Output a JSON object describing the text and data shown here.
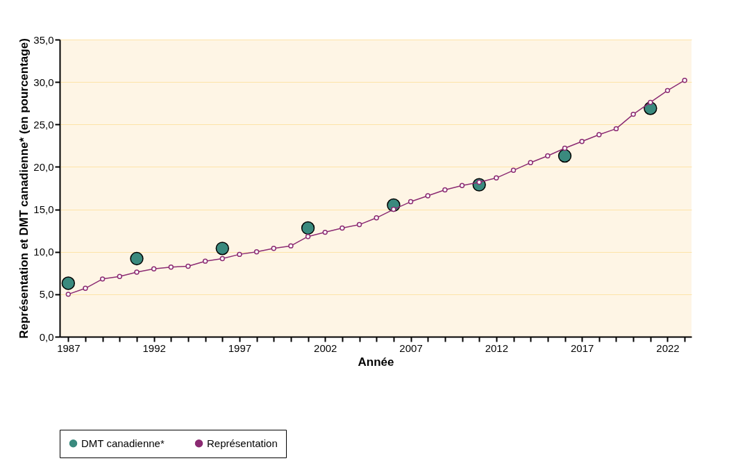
{
  "chart_data": {
    "type": "line",
    "xlabel": "Année",
    "ylabel": "Représentation et DMT canadienne* (en pourcentage)",
    "xlim": [
      1986.5,
      2023.4
    ],
    "ylim": [
      0,
      35
    ],
    "xticks": [
      1987,
      {
        "value": 1988,
        "label": null
      },
      {
        "value": 1989,
        "label": null
      },
      {
        "value": 1990,
        "label": null
      },
      {
        "value": 1991,
        "label": null
      },
      1992,
      {
        "value": 1993,
        "label": null
      },
      {
        "value": 1994,
        "label": null
      },
      {
        "value": 1995,
        "label": null
      },
      {
        "value": 1996,
        "label": null
      },
      1997,
      {
        "value": 1998,
        "label": null
      },
      {
        "value": 1999,
        "label": null
      },
      {
        "value": 2000,
        "label": null
      },
      {
        "value": 2001,
        "label": null
      },
      2002,
      {
        "value": 2003,
        "label": null
      },
      {
        "value": 2004,
        "label": null
      },
      {
        "value": 2005,
        "label": null
      },
      {
        "value": 2006,
        "label": null
      },
      2007,
      {
        "value": 2008,
        "label": null
      },
      {
        "value": 2009,
        "label": null
      },
      {
        "value": 2010,
        "label": null
      },
      {
        "value": 2011,
        "label": null
      },
      2012,
      {
        "value": 2013,
        "label": null
      },
      {
        "value": 2014,
        "label": null
      },
      {
        "value": 2015,
        "label": null
      },
      {
        "value": 2016,
        "label": null
      },
      2017,
      {
        "value": 2018,
        "label": null
      },
      {
        "value": 2019,
        "label": null
      },
      {
        "value": 2020,
        "label": null
      },
      {
        "value": 2021,
        "label": null
      },
      2022,
      {
        "value": 2023,
        "label": null
      }
    ],
    "yticks": [
      {
        "value": 0,
        "label": "0,0"
      },
      {
        "value": 5,
        "label": "5,0"
      },
      {
        "value": 10,
        "label": "10,0"
      },
      {
        "value": 15,
        "label": "15,0"
      },
      {
        "value": 20,
        "label": "20,0"
      },
      {
        "value": 25,
        "label": "25,0"
      },
      {
        "value": 30,
        "label": "30,0"
      },
      {
        "value": 35,
        "label": "35,0"
      }
    ],
    "grid": "y",
    "legend": "bottom",
    "marker": "circle",
    "series": [
      {
        "name": "DMT canadienne*",
        "type": "scatter",
        "color": "#3a8a7e",
        "x": [
          1987,
          1991,
          1996,
          2001,
          2006,
          2011,
          2016,
          2021
        ],
        "values": [
          6.3,
          9.2,
          10.4,
          12.8,
          15.5,
          17.9,
          21.3,
          26.9
        ]
      },
      {
        "name": "Représentation",
        "type": "line",
        "color": "#8b2a72",
        "x": [
          1987,
          1988,
          1989,
          1990,
          1991,
          1992,
          1993,
          1994,
          1995,
          1996,
          1997,
          1998,
          1999,
          2000,
          2001,
          2002,
          2003,
          2004,
          2005,
          2006,
          2007,
          2008,
          2009,
          2010,
          2011,
          2012,
          2013,
          2014,
          2015,
          2016,
          2017,
          2018,
          2019,
          2020,
          2021,
          2022,
          2023
        ],
        "values": [
          5.0,
          5.7,
          6.8,
          7.1,
          7.6,
          8.0,
          8.2,
          8.3,
          8.9,
          9.2,
          9.7,
          10.0,
          10.4,
          10.7,
          11.8,
          12.3,
          12.8,
          13.2,
          14.0,
          15.0,
          15.9,
          16.6,
          17.3,
          17.8,
          18.2,
          18.7,
          19.6,
          20.5,
          21.3,
          22.2,
          23.0,
          23.8,
          24.5,
          26.2,
          27.6,
          29.0,
          30.2
        ]
      }
    ]
  }
}
